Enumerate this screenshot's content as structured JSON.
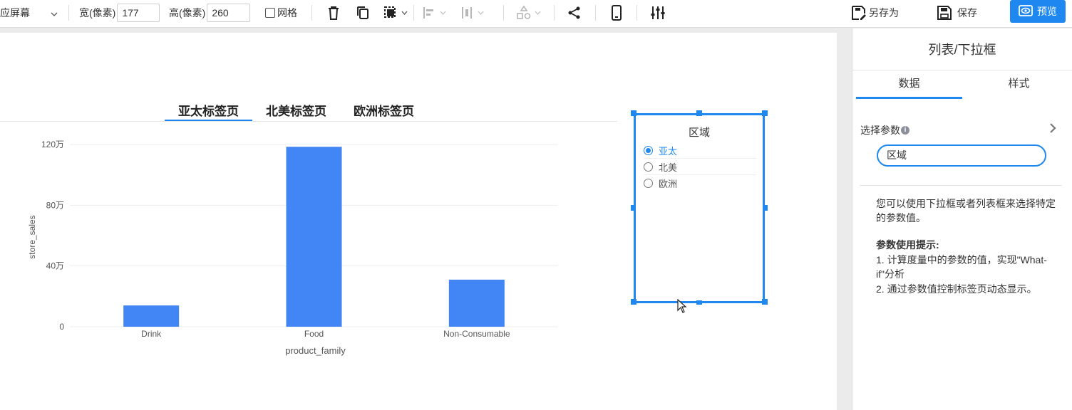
{
  "toolbar": {
    "screen_mode": "应屏幕",
    "width_label": "宽(像素)",
    "width_value": "177",
    "height_label": "高(像素)",
    "height_value": "260",
    "grid_label": "网格",
    "save_as_label": "另存为",
    "save_label": "保存",
    "preview_label": "预览",
    "icons": [
      "delete-icon",
      "copy-icon",
      "layer-icon",
      "align-left-icon",
      "align-center-icon",
      "distribute-icon",
      "share-icon",
      "mobile-icon",
      "settings-sliders-icon"
    ]
  },
  "tabs": {
    "items": [
      "亚太标签页",
      "北美标签页",
      "欧洲标签页"
    ],
    "active_index": 0
  },
  "chart_data": {
    "type": "bar",
    "categories": [
      "Drink",
      "Food",
      "Non-Consumable"
    ],
    "values": [
      14,
      118.5,
      31
    ],
    "value_unit": "万",
    "xlabel": "product_family",
    "ylabel": "store_sales",
    "yticks": [
      "0",
      "40万",
      "80万",
      "120万"
    ],
    "ylim": [
      0,
      120
    ],
    "grid": true,
    "bar_color": "#4285f4"
  },
  "listbox": {
    "title": "区域",
    "options": [
      "亚太",
      "北美",
      "欧洲"
    ],
    "selected_index": 0
  },
  "panel": {
    "title": "列表/下拉框",
    "tab_data": "数据",
    "tab_style": "样式",
    "param_label": "选择参数",
    "param_value": "区域",
    "description": "您可以使用下拉框或者列表框来选择特定的参数值。",
    "tips_title": "参数使用提示:",
    "tip1": "1. 计算度量中的参数的值，实现\"What-if\"分析",
    "tip2": "2. 通过参数值控制标签页动态显示。"
  },
  "colors": {
    "accent": "#1e88f0",
    "bar": "#4285f4"
  }
}
